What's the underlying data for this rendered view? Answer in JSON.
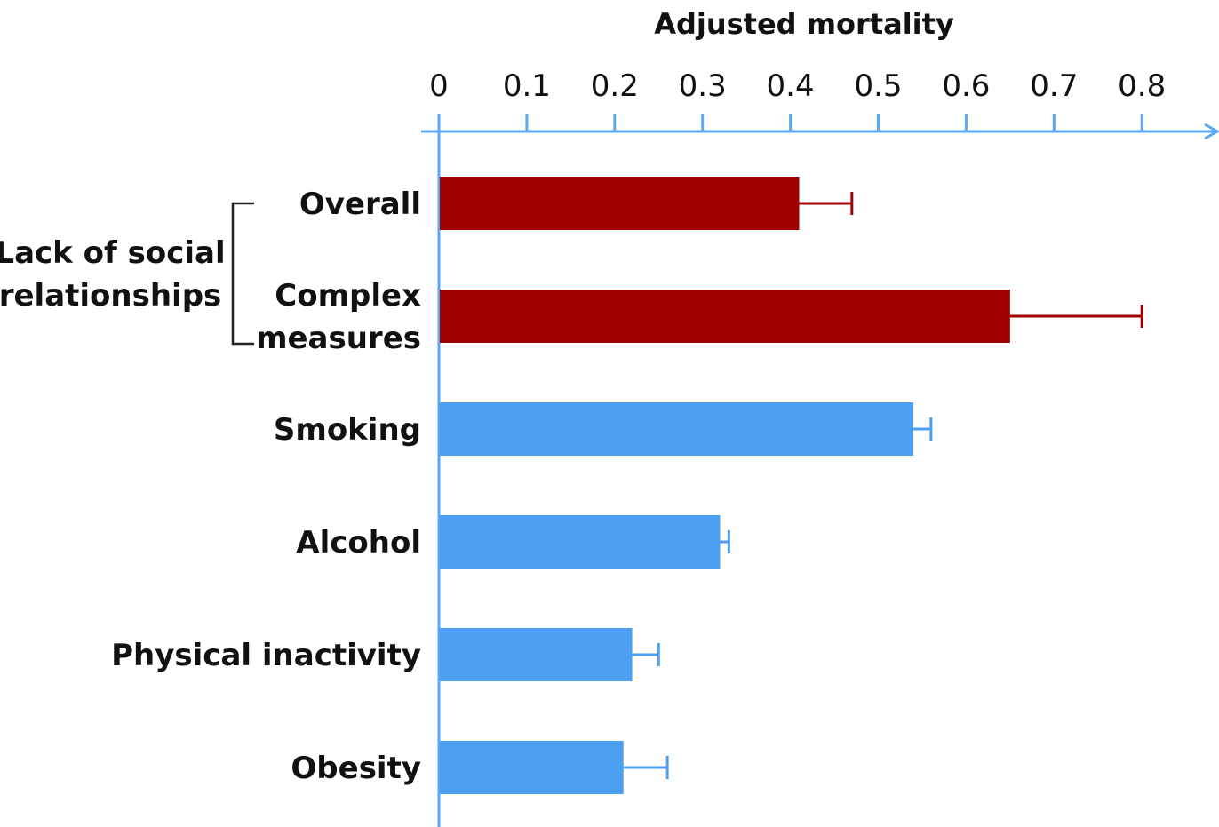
{
  "chart_data": {
    "type": "bar",
    "orientation": "horizontal",
    "title": "",
    "xlabel": "Adjusted mortality",
    "ylabel": "",
    "xlim": [
      0,
      0.8
    ],
    "x_ticks": [
      "0",
      "0.1",
      "0.2",
      "0.3",
      "0.4",
      "0.5",
      "0.6",
      "0.7",
      "0.8"
    ],
    "x_axis_position": "top",
    "grid": false,
    "categories": [
      "Overall",
      "Complex measures",
      "Smoking",
      "Alcohol",
      "Physical inactivity",
      "Obesity"
    ],
    "category_labels": [
      [
        "Overall"
      ],
      [
        "Complex",
        "measures"
      ],
      [
        "Smoking"
      ],
      [
        "Alcohol"
      ],
      [
        "Physical inactivity"
      ],
      [
        "Obesity"
      ]
    ],
    "values": [
      0.41,
      0.65,
      0.54,
      0.32,
      0.22,
      0.21
    ],
    "error_upper": [
      0.47,
      0.8,
      0.56,
      0.33,
      0.25,
      0.26
    ],
    "colors": [
      "#a00000",
      "#a00000",
      "#4d9ff2",
      "#4d9ff2",
      "#4d9ff2",
      "#4d9ff2"
    ],
    "axis_color": "#5aa8f5",
    "group_bracket": {
      "label_lines": [
        "Lack of social",
        "relationships"
      ],
      "categories": [
        "Overall",
        "Complex measures"
      ]
    }
  }
}
